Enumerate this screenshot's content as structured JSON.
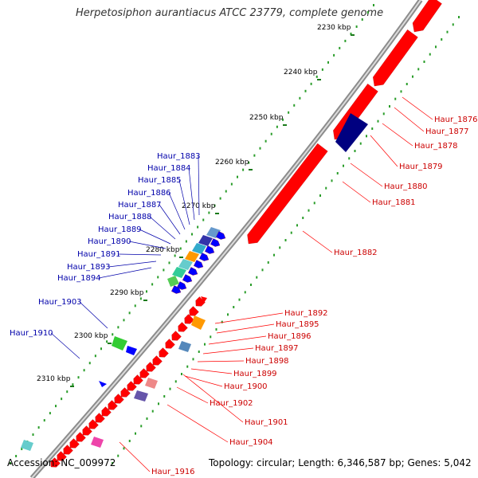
{
  "title": "Herpetosiphon aurantiacus ATCC 23779, complete genome",
  "footer": {
    "accession": "Accession: NC_009972",
    "topology": "Topology: circular; Length: 6,346,587 bp; Genes: 5,042"
  },
  "colors": {
    "backbone": "#888888",
    "tick_dots": "#2a9d2a",
    "forward_gene": "#ff0000",
    "reverse_gene": "#0000ff",
    "label_blue": "#0000aa",
    "label_red": "#cc0000",
    "line_blue": "#0000aa",
    "line_red": "#ff0000"
  },
  "ticks": [
    "2230 kbp",
    "2240 kbp",
    "2250 kbp",
    "2260 kbp",
    "2270 kbp",
    "2280 kbp",
    "2290 kbp",
    "2300 kbp",
    "2310 kbp"
  ],
  "left_labels": [
    "Haur_1883",
    "Haur_1884",
    "Haur_1885",
    "Haur_1886",
    "Haur_1887",
    "Haur_1888",
    "Haur_1889",
    "Haur_1890",
    "Haur_1891",
    "Haur_1893",
    "Haur_1894",
    "Haur_1903",
    "Haur_1910"
  ],
  "right_labels": [
    "Haur_1876",
    "Haur_1877",
    "Haur_1878",
    "Haur_1879",
    "Haur_1880",
    "Haur_1881",
    "Haur_1882",
    "Haur_1892",
    "Haur_1895",
    "Haur_1896",
    "Haur_1897",
    "Haur_1898",
    "Haur_1899",
    "Haur_1900",
    "Haur_1902",
    "Haur_1901",
    "Haur_1904",
    "Haur_1916"
  ]
}
